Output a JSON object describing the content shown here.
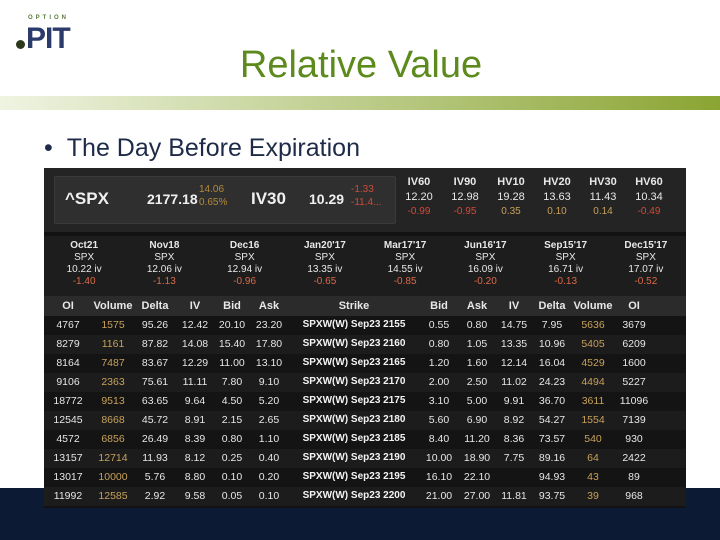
{
  "logo": {
    "tagline": "OPTION",
    "name": "PIT"
  },
  "slide": {
    "title": "Relative Value",
    "bullet": "The Day Before Expiration",
    "bullet_symbol": "•"
  },
  "quote": {
    "symbol": "^SPX",
    "price": "2177.18",
    "change": "14.06",
    "change_pct": "0.65%",
    "iv30_label": "IV30",
    "iv30": "10.29",
    "iv30_change": "-1.33",
    "iv30_change_pct": "-11.4..."
  },
  "vol_stats": [
    {
      "label": "IV60",
      "value": "12.20",
      "change": "-0.99",
      "color": "#d04a3a"
    },
    {
      "label": "IV90",
      "value": "12.98",
      "change": "-0.95",
      "color": "#d04a3a"
    },
    {
      "label": "HV10",
      "value": "19.28",
      "change": "0.35",
      "color": "#c7a15a"
    },
    {
      "label": "HV20",
      "value": "13.63",
      "change": "0.10",
      "color": "#c7a15a"
    },
    {
      "label": "HV30",
      "value": "11.43",
      "change": "0.14",
      "color": "#c7a15a"
    },
    {
      "label": "HV60",
      "value": "10.34",
      "change": "-0.49",
      "color": "#d04a3a"
    }
  ],
  "expirations": [
    {
      "name": "Oct21",
      "sym": "SPX",
      "iv": "10.22 iv",
      "change": "-1.40"
    },
    {
      "name": "Nov18",
      "sym": "SPX",
      "iv": "12.06 iv",
      "change": "-1.13"
    },
    {
      "name": "Dec16",
      "sym": "SPX",
      "iv": "12.94 iv",
      "change": "-0.96"
    },
    {
      "name": "Jan20'17",
      "sym": "SPX",
      "iv": "13.35 iv",
      "change": "-0.65"
    },
    {
      "name": "Mar17'17",
      "sym": "SPX",
      "iv": "14.55 iv",
      "change": "-0.85"
    },
    {
      "name": "Jun16'17",
      "sym": "SPX",
      "iv": "16.09 iv",
      "change": "-0.20"
    },
    {
      "name": "Sep15'17",
      "sym": "SPX",
      "iv": "16.71 iv",
      "change": "-0.13"
    },
    {
      "name": "Dec15'17",
      "sym": "SPX",
      "iv": "17.07 iv",
      "change": "-0.52"
    }
  ],
  "columns": [
    "OI",
    "Volume",
    "Delta",
    "IV",
    "Bid",
    "Ask",
    "Strike",
    "Bid",
    "Ask",
    "IV",
    "Delta",
    "Volume",
    "OI"
  ],
  "rows": [
    [
      "4767",
      "1575",
      "95.26",
      "12.42",
      "20.10",
      "23.20",
      "SPXW(W) Sep23 2155",
      "0.55",
      "0.80",
      "14.75",
      "7.95",
      "5636",
      "3679"
    ],
    [
      "8279",
      "1161",
      "87.82",
      "14.08",
      "15.40",
      "17.80",
      "SPXW(W) Sep23 2160",
      "0.80",
      "1.05",
      "13.35",
      "10.96",
      "5405",
      "6209"
    ],
    [
      "8164",
      "7487",
      "83.67",
      "12.29",
      "11.00",
      "13.10",
      "SPXW(W) Sep23 2165",
      "1.20",
      "1.60",
      "12.14",
      "16.04",
      "4529",
      "1600"
    ],
    [
      "9106",
      "2363",
      "75.61",
      "11.11",
      "7.80",
      "9.10",
      "SPXW(W) Sep23 2170",
      "2.00",
      "2.50",
      "11.02",
      "24.23",
      "4494",
      "5227"
    ],
    [
      "18772",
      "9513",
      "63.65",
      "9.64",
      "4.50",
      "5.20",
      "SPXW(W) Sep23 2175",
      "3.10",
      "5.00",
      "9.91",
      "36.70",
      "3611",
      "11096"
    ],
    [
      "12545",
      "8668",
      "45.72",
      "8.91",
      "2.15",
      "2.65",
      "SPXW(W) Sep23 2180",
      "5.60",
      "6.90",
      "8.92",
      "54.27",
      "1554",
      "7139"
    ],
    [
      "4572",
      "6856",
      "26.49",
      "8.39",
      "0.80",
      "1.10",
      "SPXW(W) Sep23 2185",
      "8.40",
      "11.20",
      "8.36",
      "73.57",
      "540",
      "930"
    ],
    [
      "13157",
      "12714",
      "11.93",
      "8.12",
      "0.25",
      "0.40",
      "SPXW(W) Sep23 2190",
      "10.00",
      "18.90",
      "7.75",
      "89.16",
      "64",
      "2422"
    ],
    [
      "13017",
      "10000",
      "5.76",
      "8.80",
      "0.10",
      "0.20",
      "SPXW(W) Sep23 2195",
      "16.10",
      "22.10",
      "",
      "94.93",
      "43",
      "89"
    ],
    [
      "11992",
      "12585",
      "2.92",
      "9.58",
      "0.05",
      "0.10",
      "SPXW(W) Sep23 2200",
      "21.00",
      "27.00",
      "11.81",
      "93.75",
      "39",
      "968"
    ]
  ]
}
